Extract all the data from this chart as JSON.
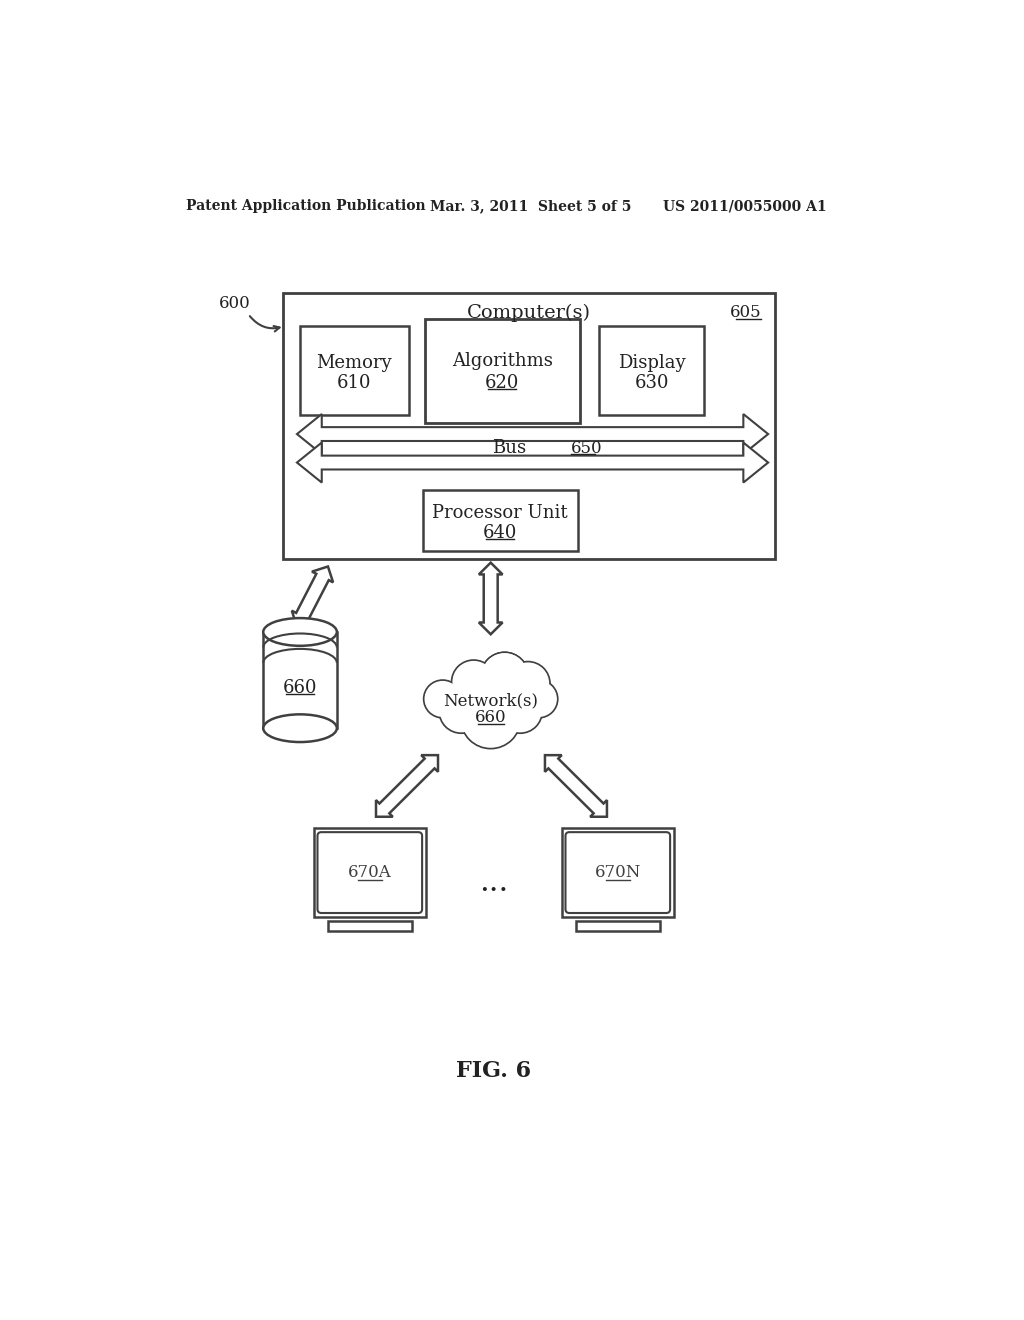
{
  "background_color": "#ffffff",
  "header_left": "Patent Application Publication",
  "header_mid": "Mar. 3, 2011  Sheet 5 of 5",
  "header_right": "US 2011/0055000 A1",
  "fig_label": "FIG. 6",
  "label_600": "600",
  "label_605": "605",
  "label_610": "610",
  "label_620": "620",
  "label_630": "630",
  "label_640": "640",
  "label_650": "650",
  "label_660_db": "660",
  "label_660_net": "660",
  "label_670a": "670A",
  "label_670n": "670N",
  "text_computers": "Computer(s)",
  "text_memory": "Memory",
  "text_algorithms": "Algorithms",
  "text_display": "Display",
  "text_bus": "Bus",
  "text_processor": "Processor Unit",
  "text_networks": "Network(s)",
  "line_color": "#404040",
  "text_color": "#222222"
}
